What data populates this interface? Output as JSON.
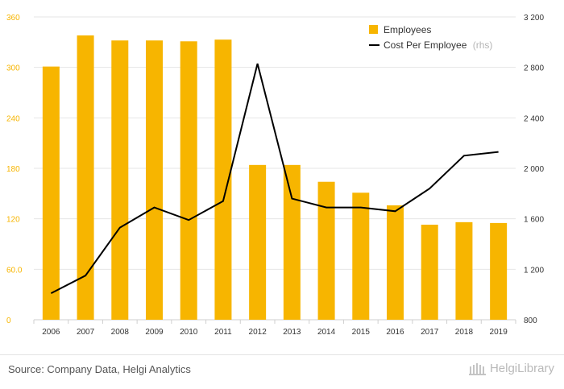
{
  "chart_data": {
    "type": "bar+line",
    "categories": [
      "2006",
      "2007",
      "2008",
      "2009",
      "2010",
      "2011",
      "2012",
      "2013",
      "2014",
      "2015",
      "2016",
      "2017",
      "2018",
      "2019"
    ],
    "series": [
      {
        "name": "Employees",
        "type": "bar",
        "axis": "left",
        "color": "#f7b500",
        "values": [
          301,
          338,
          332,
          332,
          331,
          333,
          184,
          184,
          164,
          151,
          136,
          113,
          116,
          115
        ]
      },
      {
        "name": "Cost Per Employee",
        "suffix": "(rhs)",
        "type": "line",
        "axis": "right",
        "color": "#000000",
        "values": [
          1010,
          1150,
          1530,
          1690,
          1590,
          1740,
          2830,
          1760,
          1690,
          1690,
          1660,
          1840,
          2100,
          2130
        ]
      }
    ],
    "y_left": {
      "min": 0,
      "max": 360,
      "ticks": [
        "0",
        "60.0",
        "120",
        "180",
        "240",
        "300",
        "360"
      ],
      "tick_color": "#f7b500"
    },
    "y_right": {
      "min": 800,
      "max": 3200,
      "ticks": [
        "800",
        "1 200",
        "1 600",
        "2 000",
        "2 400",
        "2 800",
        "3 200"
      ]
    },
    "legend": {
      "position": "top-right"
    },
    "grid": true
  },
  "footer": {
    "source": "Source: Company Data, Helgi Analytics",
    "brand": "HelgiLibrary"
  }
}
